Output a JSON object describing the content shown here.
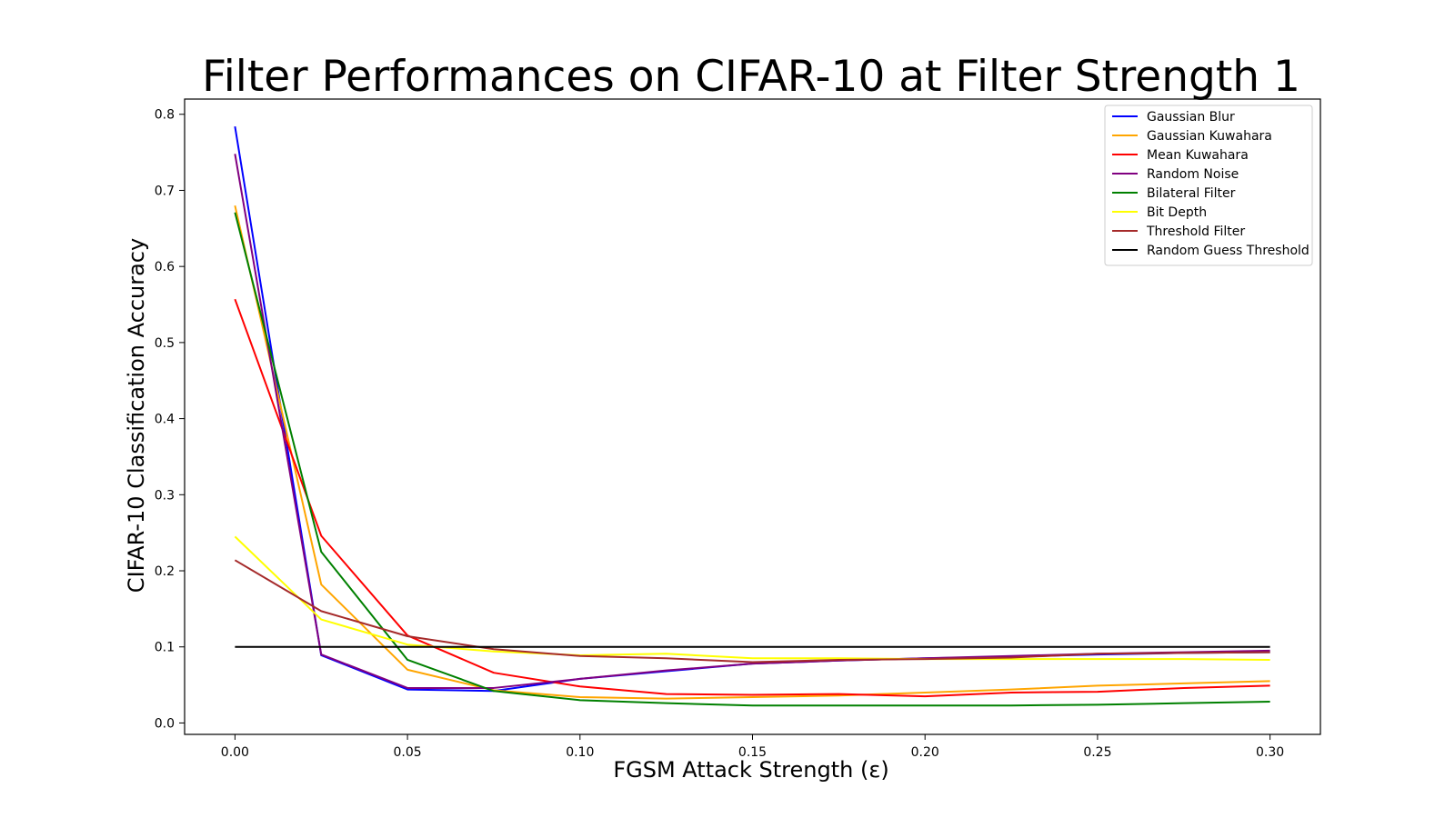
{
  "chart_data": {
    "type": "line",
    "title": "Filter Performances on CIFAR-10 at Filter Strength 1",
    "xlabel": "FGSM Attack Strength (ε)",
    "ylabel": "CIFAR-10 Classification Accuracy",
    "xlim": [
      -0.0146,
      0.3146
    ],
    "ylim": [
      -0.015,
      0.82
    ],
    "xticks": [
      0.0,
      0.05,
      0.1,
      0.15,
      0.2,
      0.25,
      0.3
    ],
    "xtick_labels": [
      "0.00",
      "0.05",
      "0.10",
      "0.15",
      "0.20",
      "0.25",
      "0.30"
    ],
    "yticks": [
      0.0,
      0.1,
      0.2,
      0.3,
      0.4,
      0.5,
      0.6,
      0.7,
      0.8
    ],
    "ytick_labels": [
      "0.0",
      "0.1",
      "0.2",
      "0.3",
      "0.4",
      "0.5",
      "0.6",
      "0.7",
      "0.8"
    ],
    "grid": false,
    "legend_position": "top-right",
    "x": [
      0.0,
      0.025,
      0.05,
      0.075,
      0.1,
      0.125,
      0.15,
      0.175,
      0.2,
      0.225,
      0.25,
      0.275,
      0.3
    ],
    "series": [
      {
        "name": "Gaussian Blur",
        "color": "#0000ff",
        "values": [
          0.784,
          0.089,
          0.044,
          0.042,
          0.058,
          0.068,
          0.078,
          0.082,
          0.085,
          0.087,
          0.09,
          0.092,
          0.093
        ]
      },
      {
        "name": "Gaussian Kuwahara",
        "color": "#ffa500",
        "values": [
          0.68,
          0.182,
          0.07,
          0.043,
          0.034,
          0.032,
          0.034,
          0.036,
          0.04,
          0.044,
          0.049,
          0.052,
          0.055
        ]
      },
      {
        "name": "Mean Kuwahara",
        "color": "#ff0000",
        "values": [
          0.557,
          0.246,
          0.115,
          0.066,
          0.048,
          0.038,
          0.037,
          0.038,
          0.035,
          0.04,
          0.041,
          0.046,
          0.049
        ]
      },
      {
        "name": "Random Noise",
        "color": "#800080",
        "values": [
          0.748,
          0.09,
          0.046,
          0.046,
          0.058,
          0.069,
          0.078,
          0.082,
          0.085,
          0.088,
          0.091,
          0.093,
          0.095
        ]
      },
      {
        "name": "Bilateral Filter",
        "color": "#008000",
        "values": [
          0.671,
          0.225,
          0.083,
          0.042,
          0.03,
          0.026,
          0.023,
          0.023,
          0.023,
          0.023,
          0.024,
          0.026,
          0.028
        ]
      },
      {
        "name": "Bit Depth",
        "color": "#ffff00",
        "values": [
          0.245,
          0.136,
          0.103,
          0.094,
          0.089,
          0.091,
          0.085,
          0.085,
          0.084,
          0.084,
          0.084,
          0.084,
          0.083
        ]
      },
      {
        "name": "Threshold Filter",
        "color": "#a52a2a",
        "values": [
          0.214,
          0.147,
          0.114,
          0.097,
          0.088,
          0.085,
          0.08,
          0.083,
          0.084,
          0.086,
          0.091,
          0.092,
          0.093
        ]
      },
      {
        "name": "Random Guess Threshold",
        "color": "#000000",
        "values": [
          0.1,
          0.1,
          0.1,
          0.1,
          0.1,
          0.1,
          0.1,
          0.1,
          0.1,
          0.1,
          0.1,
          0.1,
          0.1
        ]
      }
    ]
  }
}
